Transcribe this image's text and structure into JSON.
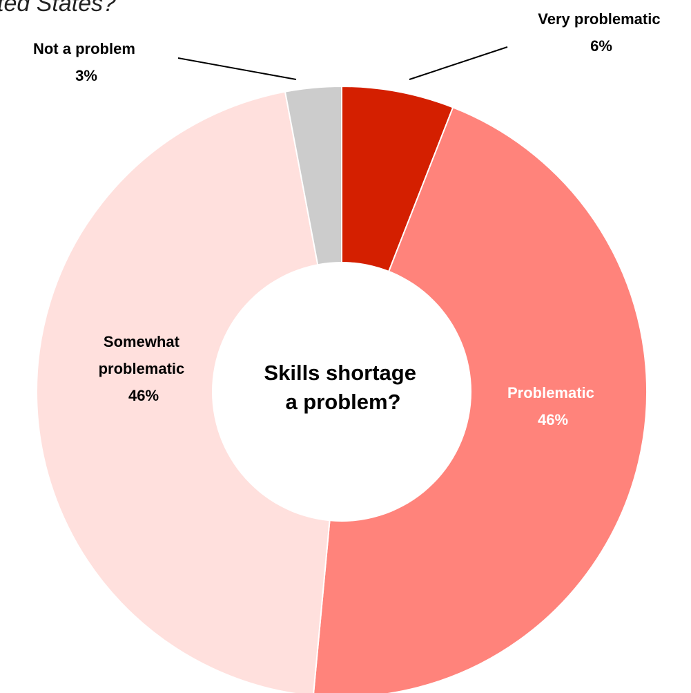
{
  "chart_data": {
    "type": "pie",
    "variant": "donut",
    "title_fragment": "ted States?",
    "center_label": [
      "Skills shortage",
      "a problem?"
    ],
    "slices": [
      {
        "name": "Very problematic",
        "label": "Very problematic",
        "value_label": "6%",
        "value": 6,
        "color": "#d41f00",
        "label_color": "#000000"
      },
      {
        "name": "Problematic",
        "label": "Problematic",
        "value_label": "46%",
        "value": 46,
        "color": "#ff837b",
        "label_color": "#ffffff"
      },
      {
        "name": "Somewhat problematic",
        "label": "Somewhat problematic",
        "label_lines": [
          "Somewhat",
          "problematic"
        ],
        "value_label": "46%",
        "value": 46,
        "color": "#ffe0dd",
        "label_color": "#000000"
      },
      {
        "name": "Not a problem",
        "label": "Not a problem",
        "value_label": "3%",
        "value": 3,
        "color": "#cccccc",
        "label_color": "#000000"
      }
    ],
    "start_angle": "12 o'clock",
    "direction": "clockwise",
    "legend": "none"
  }
}
